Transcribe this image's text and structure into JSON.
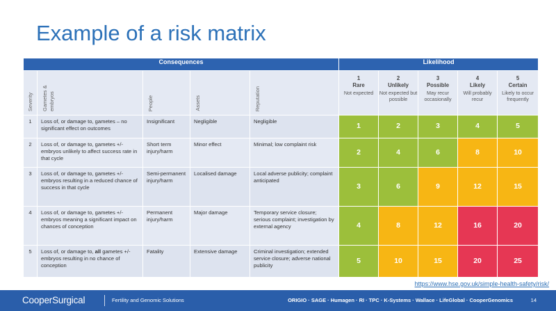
{
  "title": "Example of a risk matrix",
  "header": {
    "consequences": "Consequences",
    "likelihood": "Likelihood"
  },
  "columns": {
    "severity": "Severity",
    "gametes": "Gametes & embryos",
    "people": "People",
    "assets": "Assets",
    "reputation": "Reputation"
  },
  "likelihood": [
    {
      "num": "1",
      "label": "Rare",
      "desc": "Not expected"
    },
    {
      "num": "2",
      "label": "Unlikely",
      "desc": "Not expected but possible"
    },
    {
      "num": "3",
      "label": "Possible",
      "desc": "May recur occasionally"
    },
    {
      "num": "4",
      "label": "Likely",
      "desc": "Will probably recur"
    },
    {
      "num": "5",
      "label": "Certain",
      "desc": "Likely to occur frequently"
    }
  ],
  "rows": [
    {
      "severity": "1",
      "gametes": "Loss of, or damage to, gametes – no significant effect on outcomes",
      "people": "Insignificant",
      "assets": "Negligible",
      "reputation": "Negligible",
      "scores": [
        "1",
        "2",
        "3",
        "4",
        "5"
      ],
      "levels": [
        "green",
        "green",
        "green",
        "green",
        "green"
      ]
    },
    {
      "severity": "2",
      "gametes": "Loss of, or damage to, gametes +/- embryos unlikely to affect success rate in that cycle",
      "people": "Short term injury/harm",
      "assets": "Minor effect",
      "reputation": "Minimal; low complaint risk",
      "scores": [
        "2",
        "4",
        "6",
        "8",
        "10"
      ],
      "levels": [
        "green",
        "green",
        "green",
        "amber",
        "amber"
      ]
    },
    {
      "severity": "3",
      "gametes": "Loss of, or damage to, gametes +/- embryos resulting in a reduced chance of success in that cycle",
      "people": "Semi-permanent injury/harm",
      "assets": "Localised damage",
      "reputation": "Local adverse publicity; complaint anticipated",
      "scores": [
        "3",
        "6",
        "9",
        "12",
        "15"
      ],
      "levels": [
        "green",
        "green",
        "amber",
        "amber",
        "amber"
      ]
    },
    {
      "severity": "4",
      "gametes": "Loss of, or damage to, gametes +/- embryos meaning a significant impact on chances of conception",
      "people": "Permanent injury/harm",
      "assets": "Major damage",
      "reputation": "Temporary service closure; serious complaint; investigation by external agency",
      "scores": [
        "4",
        "8",
        "12",
        "16",
        "20"
      ],
      "levels": [
        "green",
        "amber",
        "amber",
        "red",
        "red"
      ]
    },
    {
      "severity": "5",
      "gametes_pre": "Loss of, or damage to, ",
      "gametes_bold": "all",
      "gametes_post": " gametes +/- embryos resulting in no chance of conception",
      "people": "Fatality",
      "assets": "Extensive damage",
      "reputation": "Criminal investigation; extended service closure; adverse national publicity",
      "scores": [
        "5",
        "10",
        "15",
        "20",
        "25"
      ],
      "levels": [
        "green",
        "amber",
        "amber",
        "red",
        "red"
      ]
    }
  ],
  "colors": {
    "green": "#9cbf3b",
    "amber": "#f7b614",
    "red": "#e63754",
    "header": "#2d63b0"
  },
  "link": "https://www.hse.gov.uk/simple-health-safety/risk/",
  "footer": {
    "logo": "CooperSurgical",
    "tagline": "Fertility and Genomic Solutions",
    "brands": "ORIGIO · SAGE · Humagen · RI · TPC · K-Systems · Wallace · LifeGlobal · CooperGenomics",
    "page": "14"
  }
}
